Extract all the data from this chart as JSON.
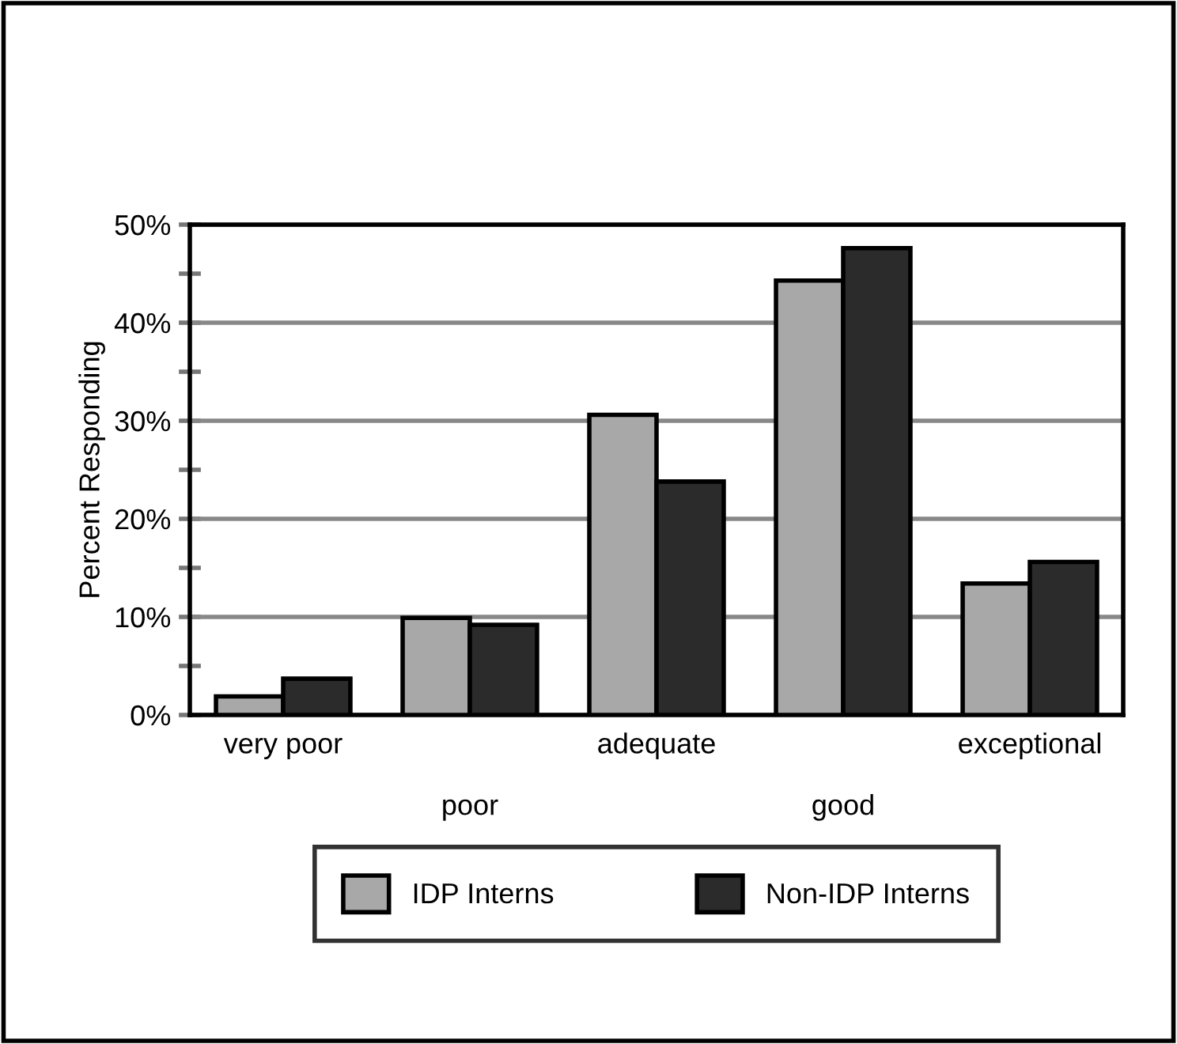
{
  "chart_data": {
    "type": "bar",
    "ylabel": "Percent Responding",
    "categories": [
      "very poor",
      "poor",
      "adequate",
      "good",
      "exceptional"
    ],
    "series": [
      {
        "name": "IDP Interns",
        "color": "#a8a8a8",
        "values": [
          1.9,
          9.9,
          30.6,
          44.3,
          13.4
        ]
      },
      {
        "name": "Non-IDP Interns",
        "color": "#2b2b2b",
        "values": [
          3.7,
          9.2,
          23.8,
          47.6,
          15.6
        ]
      }
    ],
    "ylim": [
      0,
      50
    ],
    "yticks": [
      {
        "value": 0,
        "label": "0%"
      },
      {
        "value": 5,
        "label": null
      },
      {
        "value": 10,
        "label": "10%"
      },
      {
        "value": 15,
        "label": null
      },
      {
        "value": 20,
        "label": "20%"
      },
      {
        "value": 25,
        "label": null
      },
      {
        "value": 30,
        "label": "30%"
      },
      {
        "value": 35,
        "label": null
      },
      {
        "value": 40,
        "label": "40%"
      },
      {
        "value": 45,
        "label": null
      },
      {
        "value": 50,
        "label": "50%"
      }
    ],
    "grid": "y",
    "legend": "bottom"
  }
}
